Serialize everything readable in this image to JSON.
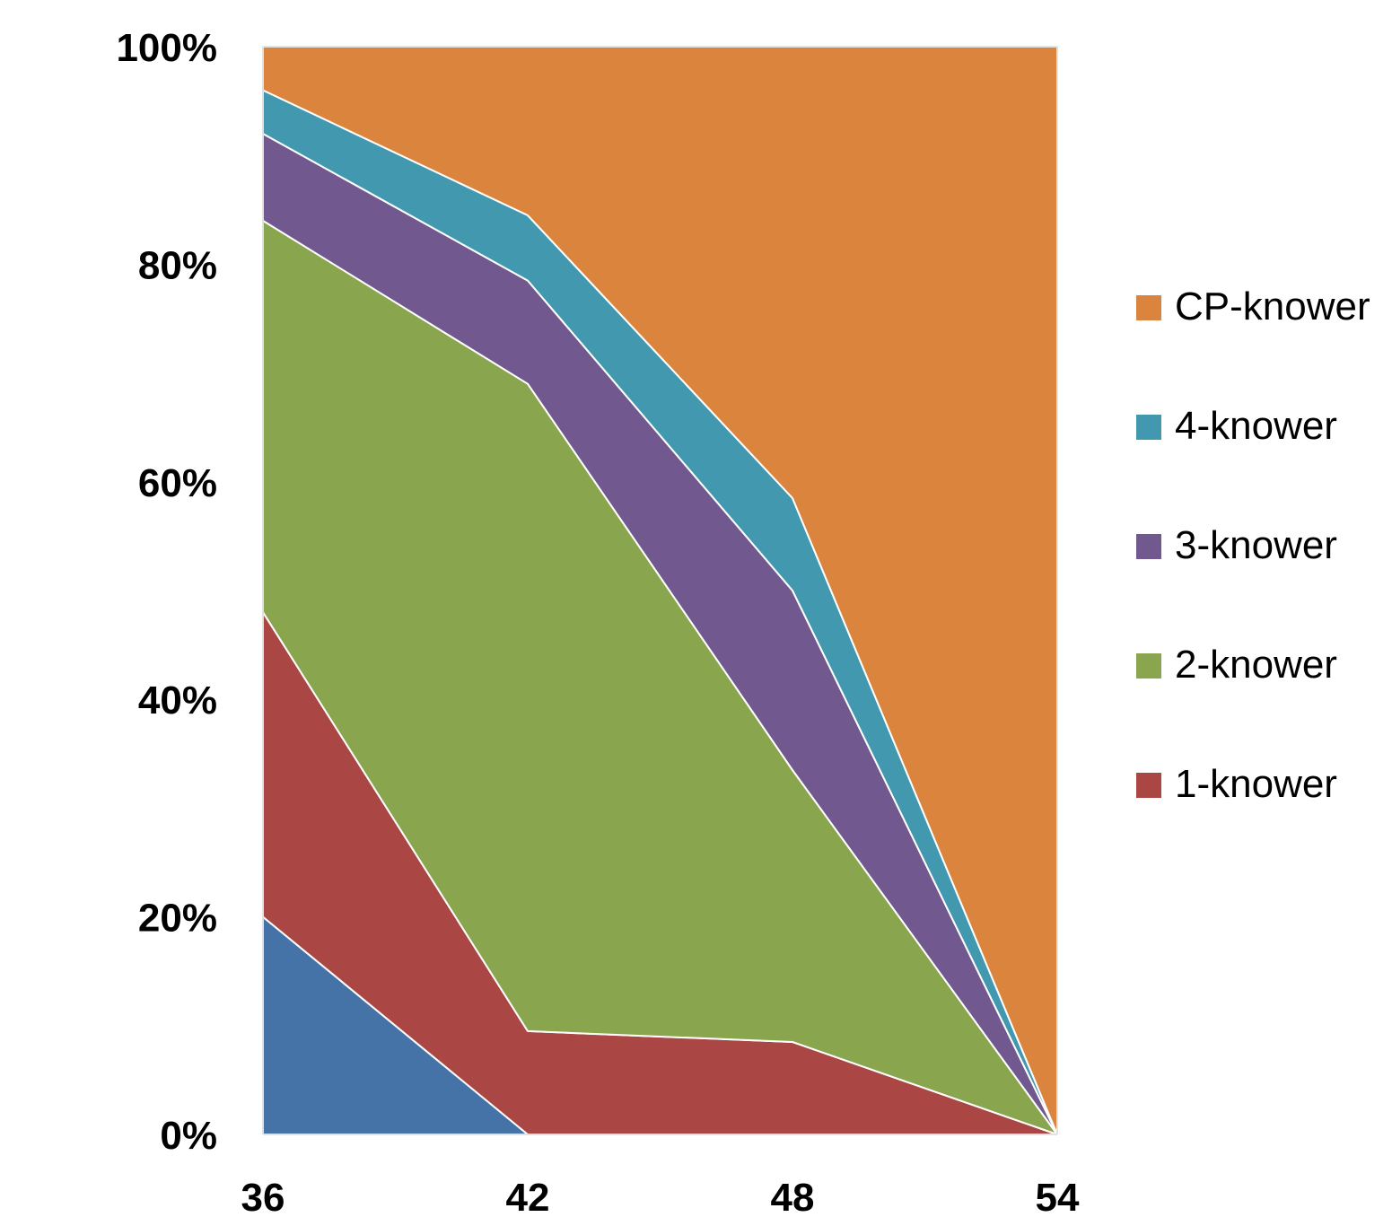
{
  "chart_data": {
    "type": "area",
    "stacked": true,
    "percent": true,
    "x": [
      "36",
      "42",
      "48",
      "54"
    ],
    "ylim": [
      0,
      100
    ],
    "y_ticks": [
      "0%",
      "20%",
      "40%",
      "60%",
      "80%",
      "100%"
    ],
    "grid": false,
    "legend_position": "right",
    "series": [
      {
        "key": "unlabeled",
        "name": "",
        "color": "#4572A7",
        "values": [
          20,
          0,
          0,
          0
        ],
        "in_legend": false
      },
      {
        "key": "one",
        "name": "1-knower",
        "color": "#AA4643",
        "values": [
          28,
          9.5,
          8.5,
          0
        ],
        "in_legend": true
      },
      {
        "key": "two",
        "name": "2-knower",
        "color": "#89A54E",
        "values": [
          36,
          59.5,
          25,
          0
        ],
        "in_legend": true
      },
      {
        "key": "three",
        "name": "3-knower",
        "color": "#71588F",
        "values": [
          8,
          9.5,
          16.5,
          0
        ],
        "in_legend": true
      },
      {
        "key": "four",
        "name": "4-knower",
        "color": "#4198AF",
        "values": [
          4,
          6,
          8.5,
          0
        ],
        "in_legend": true
      },
      {
        "key": "cp",
        "name": "CP-knower",
        "color": "#DB843D",
        "values": [
          4,
          15.5,
          41.5,
          100
        ],
        "in_legend": true
      }
    ]
  }
}
